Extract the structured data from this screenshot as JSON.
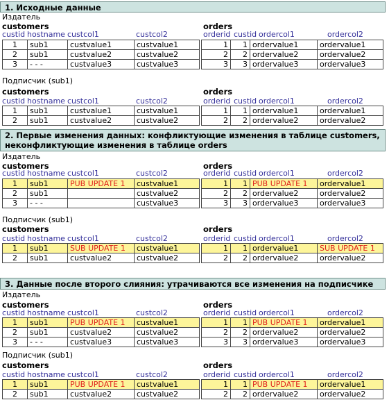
{
  "labels": {
    "publisher": "Издатель",
    "subscriber": "Подписчик (sub1)",
    "customers": "customers",
    "orders": "orders"
  },
  "cust_cols": [
    "custid",
    "hostname",
    "custcol1",
    "custcol2"
  ],
  "order_cols": [
    "orderid",
    "custid",
    "ordercol1",
    "ordercol2"
  ],
  "sections": [
    {
      "title": "1. Исходные данные",
      "pub_customers": [
        {
          "c": [
            "1",
            "sub1",
            "custvalue1",
            "custvalue1"
          ],
          "hl": false
        },
        {
          "c": [
            "2",
            "sub1",
            "custvalue2",
            "custvalue2"
          ],
          "hl": false
        },
        {
          "c": [
            "3",
            "- - -",
            "custvalue3",
            "custvalue3"
          ],
          "hl": false
        }
      ],
      "pub_orders": [
        {
          "c": [
            "1",
            "1",
            "ordervalue1",
            "ordervalue1"
          ],
          "hl": false
        },
        {
          "c": [
            "2",
            "2",
            "ordervalue2",
            "ordervalue2"
          ],
          "hl": false
        },
        {
          "c": [
            "3",
            "3",
            "ordervalue3",
            "ordervalue3"
          ],
          "hl": false
        }
      ],
      "sub_customers": [
        {
          "c": [
            "1",
            "sub1",
            "custvalue1",
            "custvalue1"
          ],
          "hl": false
        },
        {
          "c": [
            "2",
            "sub1",
            "custvalue2",
            "custvalue2"
          ],
          "hl": false
        }
      ],
      "sub_orders": [
        {
          "c": [
            "1",
            "1",
            "ordervalue1",
            "ordervalue1"
          ],
          "hl": false
        },
        {
          "c": [
            "2",
            "2",
            "ordervalue2",
            "ordervalue2"
          ],
          "hl": false
        }
      ]
    },
    {
      "title": "2. Первые изменения данных: конфликтующие изменения в таблице customers,",
      "title2": "неконфликтующие изменения в таблице orders",
      "pub_customers": [
        {
          "c": [
            "1",
            "sub1",
            "PUB UPDATE 1",
            "custvalue1"
          ],
          "hl": true
        },
        {
          "c": [
            "2",
            "sub1",
            "",
            "custvalue2"
          ],
          "hl": false
        },
        {
          "c": [
            "3",
            "- - -",
            "",
            "custvalue3"
          ],
          "hl": false
        }
      ],
      "pub_orders": [
        {
          "c": [
            "1",
            "1",
            "PUB UPDATE 1",
            "ordervalue1"
          ],
          "hl": true
        },
        {
          "c": [
            "2",
            "2",
            "ordervalue2",
            "ordervalue2"
          ],
          "hl": false
        },
        {
          "c": [
            "3",
            "3",
            "ordervalue3",
            "ordervalue3"
          ],
          "hl": false
        }
      ],
      "sub_customers": [
        {
          "c": [
            "1",
            "sub1",
            "SUB UPDATE 1",
            "custvalue1"
          ],
          "hl": true
        },
        {
          "c": [
            "2",
            "sub1",
            "custvalue2",
            "custvalue2"
          ],
          "hl": false
        }
      ],
      "sub_orders": [
        {
          "c": [
            "1",
            "1",
            "ordervalue1",
            "SUB UPDATE 1"
          ],
          "hl": true
        },
        {
          "c": [
            "2",
            "2",
            "ordervalue2",
            "ordervalue2"
          ],
          "hl": false
        }
      ]
    },
    {
      "title": "3. Данные после второго слияния: утрачиваются все изменения на подписчике",
      "pub_customers": [
        {
          "c": [
            "1",
            "sub1",
            "PUB UPDATE 1",
            "custvalue1"
          ],
          "hl": true
        },
        {
          "c": [
            "2",
            "sub1",
            "custvalue2",
            "custvalue2"
          ],
          "hl": false
        },
        {
          "c": [
            "3",
            "- - -",
            "custvalue3",
            "custvalue3"
          ],
          "hl": false
        }
      ],
      "pub_orders": [
        {
          "c": [
            "1",
            "1",
            "PUB UPDATE 1",
            "ordervalue1"
          ],
          "hl": true
        },
        {
          "c": [
            "2",
            "2",
            "ordervalue2",
            "ordervalue2"
          ],
          "hl": false
        },
        {
          "c": [
            "3",
            "3",
            "ordervalue3",
            "ordervalue3"
          ],
          "hl": false
        }
      ],
      "sub_customers": [
        {
          "c": [
            "1",
            "sub1",
            "PUB UPDATE 1",
            "custvalue1"
          ],
          "hl": true
        },
        {
          "c": [
            "2",
            "sub1",
            "custvalue2",
            "custvalue2"
          ],
          "hl": false
        }
      ],
      "sub_orders": [
        {
          "c": [
            "1",
            "1",
            "PUB UPDATE 1",
            "ordervalue1"
          ],
          "hl": true
        },
        {
          "c": [
            "2",
            "2",
            "ordervalue2",
            "ordervalue2"
          ],
          "hl": false
        }
      ]
    }
  ]
}
